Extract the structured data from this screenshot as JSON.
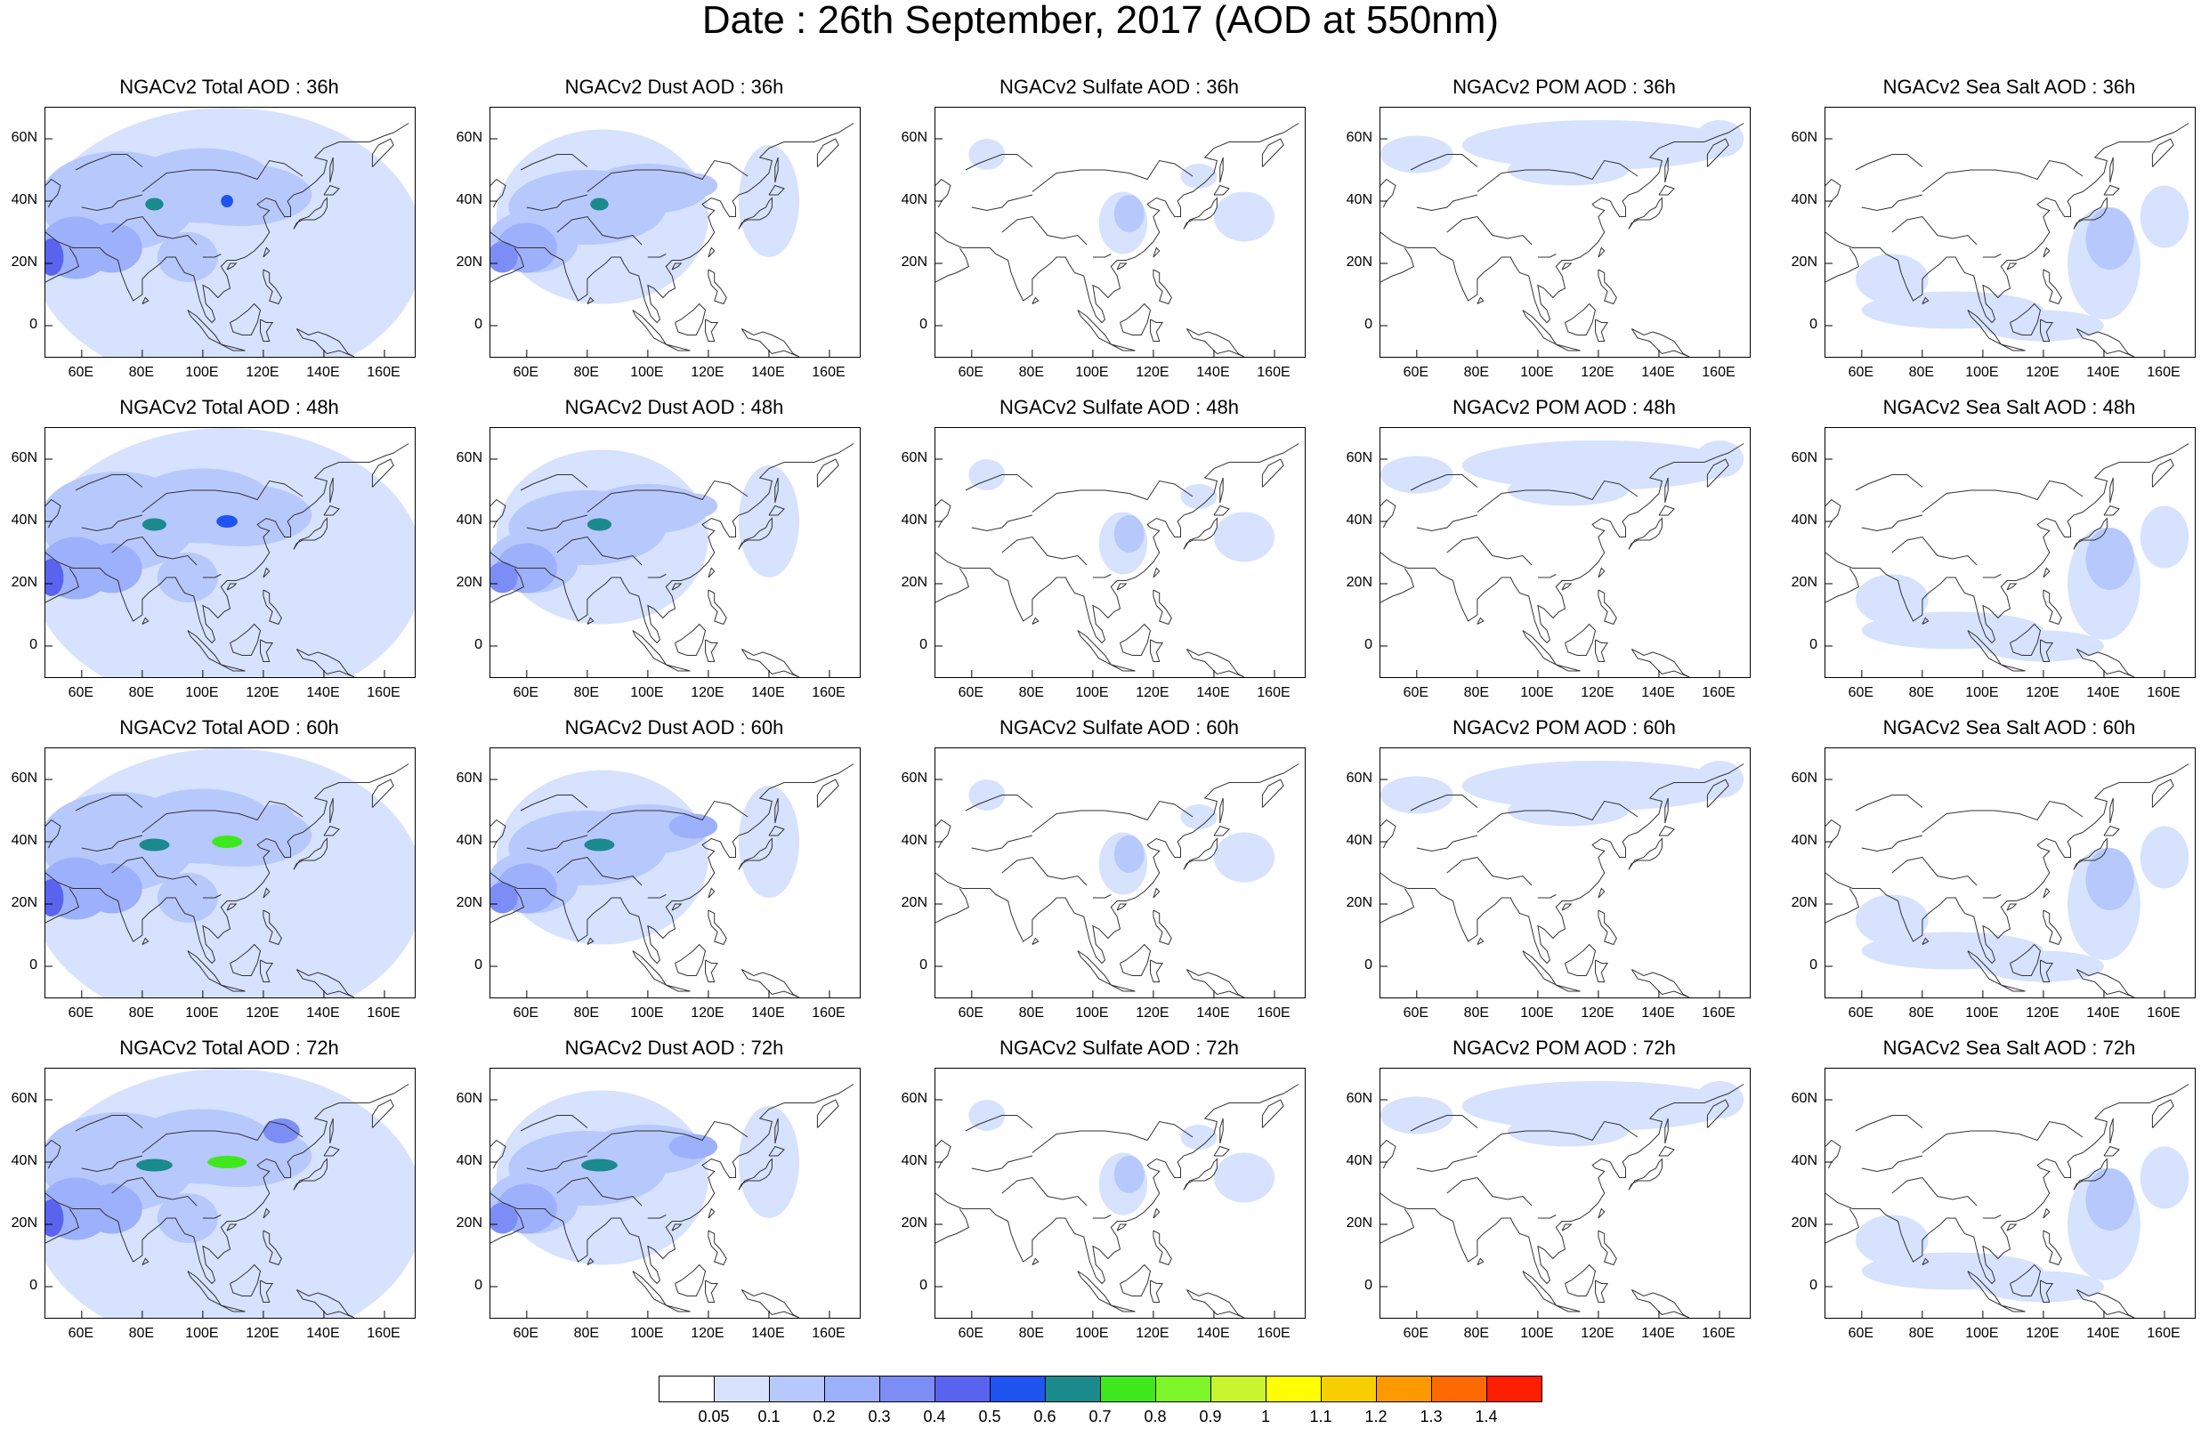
{
  "title": "Date : 26th September, 2017 (AOD at 550nm)",
  "columns": [
    {
      "species": "total",
      "titles": [
        "NGACv2 Total AOD : 36h",
        "NGACv2 Total AOD : 48h",
        "NGACv2 Total AOD : 60h",
        "NGACv2 Total AOD : 72h"
      ]
    },
    {
      "species": "dust",
      "titles": [
        "NGACv2 Dust AOD : 36h",
        "NGACv2 Dust AOD : 48h",
        "NGACv2 Dust AOD : 60h",
        "NGACv2 Dust AOD : 72h"
      ]
    },
    {
      "species": "sulfate",
      "titles": [
        "NGACv2 Sulfate AOD : 36h",
        "NGACv2 Sulfate AOD : 48h",
        "NGACv2 Sulfate AOD : 60h",
        "NGACv2 Sulfate AOD : 72h"
      ]
    },
    {
      "species": "pom",
      "titles": [
        "NGACv2 POM AOD : 36h",
        "NGACv2 POM AOD : 48h",
        "NGACv2 POM AOD : 60h",
        "NGACv2 POM AOD : 72h"
      ]
    },
    {
      "species": "seasalt",
      "titles": [
        "NGACv2 Sea Salt AOD : 36h",
        "NGACv2 Sea Salt AOD : 48h",
        "NGACv2 Sea Salt AOD : 60h",
        "NGACv2 Sea Salt  AOD : 72h"
      ]
    }
  ],
  "lat_ticks": [
    "60N",
    "40N",
    "20N",
    "0"
  ],
  "lon_ticks": [
    "60E",
    "80E",
    "100E",
    "120E",
    "140E",
    "160E"
  ],
  "colorbar": {
    "labels": [
      "0.05",
      "0.1",
      "0.2",
      "0.3",
      "0.4",
      "0.5",
      "0.6",
      "0.7",
      "0.8",
      "0.9",
      "1",
      "1.1",
      "1.2",
      "1.3",
      "1.4"
    ],
    "colors": [
      "#ffffff",
      "#d6e2fe",
      "#b7c8fd",
      "#9db0fb",
      "#7c8ef6",
      "#5a63ee",
      "#1f54f0",
      "#1a8a8c",
      "#3fe81d",
      "#7ef62a",
      "#c8f52f",
      "#ffff00",
      "#f7cf00",
      "#ff9900",
      "#ff6a00",
      "#ff1e00"
    ]
  }
}
